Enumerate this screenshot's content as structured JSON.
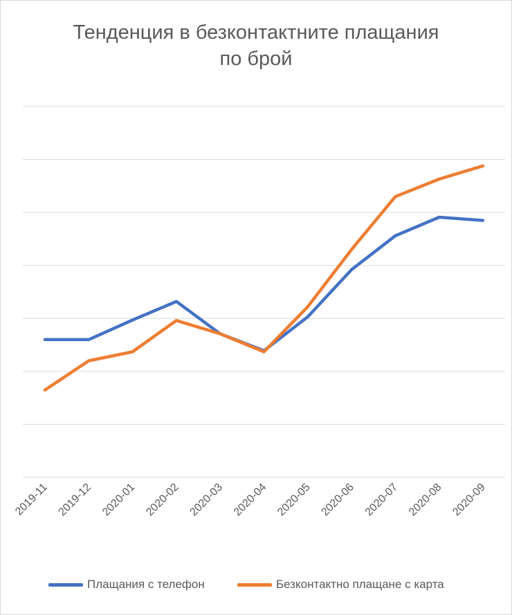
{
  "chart_data": {
    "type": "line",
    "title": "Тенденция  в безконтактните плащания",
    "subtitle": "по брой",
    "categories": [
      "2019-11",
      "2019-12",
      "2020-01",
      "2020-02",
      "2020-03",
      "2020-04",
      "2020-05",
      "2020-06",
      "2020-07",
      "2020-08",
      "2020-09"
    ],
    "series": [
      {
        "name": "Плащания с телефон",
        "color": "#4472c4",
        "values": [
          2.6,
          2.6,
          2.97,
          3.32,
          2.71,
          2.39,
          3.03,
          3.92,
          4.56,
          4.91,
          4.85
        ]
      },
      {
        "name": "Безконтактно плащане с карта",
        "color": "#ed7d31",
        "values": [
          1.65,
          2.2,
          2.37,
          2.96,
          2.71,
          2.37,
          3.22,
          4.3,
          5.3,
          5.63,
          5.88
        ]
      }
    ],
    "ylim": [
      0,
      7
    ],
    "y_axis_labels_visible": false,
    "grid": true,
    "legend": "bottom"
  }
}
